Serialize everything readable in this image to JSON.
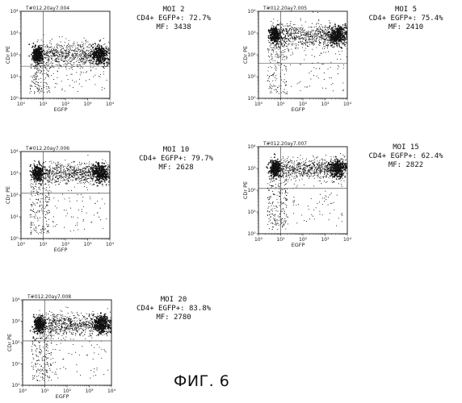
{
  "figure_label": "ФИГ. 6",
  "chart_data": [
    {
      "type": "scatter",
      "title": "T#012.20ay7.004",
      "xlabel": "EGFP",
      "ylabel": "CDr PE",
      "xscale": "log",
      "yscale": "log",
      "xlim": [
        1,
        10000
      ],
      "ylim": [
        1,
        10000
      ],
      "x_ticks": [
        "10⁰",
        "10¹",
        "10²",
        "10³",
        "10⁴"
      ],
      "y_ticks": [
        "10⁰",
        "10¹",
        "10²",
        "10³",
        "10⁴"
      ],
      "gate": {
        "x": 10,
        "y": 30
      },
      "annotation": {
        "moi": "MOI 2",
        "percent": "CD4+ EGFP+: 72.7%",
        "mf": "MF: 3438"
      }
    },
    {
      "type": "scatter",
      "title": "T#012.20ay7.005",
      "xlabel": "EGFP",
      "ylabel": "CDr PE",
      "xscale": "log",
      "yscale": "log",
      "xlim": [
        1,
        10000
      ],
      "ylim": [
        1,
        10000
      ],
      "x_ticks": [
        "10⁰",
        "10¹",
        "10²",
        "10³",
        "10⁴"
      ],
      "y_ticks": [
        "10⁰",
        "10¹",
        "10²",
        "10³",
        "10⁴"
      ],
      "gate": {
        "x": 10,
        "y": 40
      },
      "annotation": {
        "moi": "MOI 5",
        "percent": "CD4+ EGFP+: 75.4%",
        "mf": "MF: 2410"
      }
    },
    {
      "type": "scatter",
      "title": "T#012.20ay7.006",
      "xlabel": "EGFP",
      "ylabel": "CDr PE",
      "xscale": "log",
      "yscale": "log",
      "xlim": [
        1,
        10000
      ],
      "ylim": [
        1,
        10000
      ],
      "x_ticks": [
        "10⁰",
        "10¹",
        "10²",
        "10³",
        "10⁴"
      ],
      "y_ticks": [
        "10⁰",
        "10¹",
        "10²",
        "10³",
        "10⁴"
      ],
      "gate": {
        "x": 10,
        "y": 120
      },
      "annotation": {
        "moi": "MOI 10",
        "percent": "CD4+ EGFP+: 79.7%",
        "mf": "MF: 2628"
      }
    },
    {
      "type": "scatter",
      "title": "T#012.20ay7.007",
      "xlabel": "EGFP",
      "ylabel": "CDr PE",
      "xscale": "log",
      "yscale": "log",
      "xlim": [
        1,
        10000
      ],
      "ylim": [
        1,
        10000
      ],
      "x_ticks": [
        "10⁰",
        "10¹",
        "10²",
        "10³",
        "10⁴"
      ],
      "y_ticks": [
        "10⁰",
        "10¹",
        "10²",
        "10³",
        "10⁴"
      ],
      "gate": {
        "x": 10,
        "y": 120
      },
      "annotation": {
        "moi": "MOI 15",
        "percent": "CD4+ EGFP+: 62.4%",
        "mf": "MF: 2822"
      }
    },
    {
      "type": "scatter",
      "title": "T#012.20ay7.008",
      "xlabel": "EGFP",
      "ylabel": "CDr PE",
      "xscale": "log",
      "yscale": "log",
      "xlim": [
        1,
        10000
      ],
      "ylim": [
        1,
        10000
      ],
      "x_ticks": [
        "10⁰",
        "10¹",
        "10²",
        "10³",
        "10⁴"
      ],
      "y_ticks": [
        "10⁰",
        "10¹",
        "10²",
        "10³",
        "10⁴"
      ],
      "gate": {
        "x": 10,
        "y": 120
      },
      "annotation": {
        "moi": "MOI 20",
        "percent": "CD4+ EGFP+: 83.8%",
        "mf": "MF: 2780"
      }
    }
  ]
}
